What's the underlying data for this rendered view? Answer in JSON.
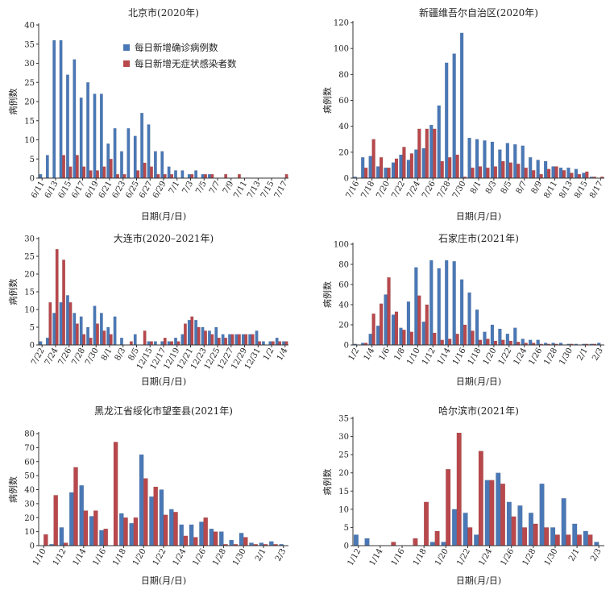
{
  "colors": {
    "confirmed": "#4a78b6",
    "asymptomatic": "#b8484c",
    "axis": "#333333"
  },
  "chart_data": [
    {
      "type": "bar",
      "title": "北京市(2020年)",
      "xlabel": "日期(月/日)",
      "ylabel": "病例数",
      "ylim": [
        0,
        40
      ],
      "yticks": [
        0,
        5,
        10,
        15,
        20,
        25,
        30,
        35,
        40
      ],
      "legend": [
        "每日新增确诊病例数",
        "每日新增无症状感染者数"
      ],
      "legend_position": "top-right",
      "categories": [
        "6/11",
        "6/12",
        "6/13",
        "6/14",
        "6/15",
        "6/16",
        "6/17",
        "6/18",
        "6/19",
        "6/20",
        "6/21",
        "6/22",
        "6/23",
        "6/24",
        "6/25",
        "6/26",
        "6/27",
        "6/28",
        "6/29",
        "6/30",
        "7/1",
        "7/2",
        "7/3",
        "7/4",
        "7/5",
        "7/6",
        "7/7",
        "7/8",
        "7/9",
        "7/10",
        "7/11",
        "7/12",
        "7/13",
        "7/14",
        "7/15",
        "7/16",
        "7/17"
      ],
      "ticklabels": [
        "6/11",
        "6/13",
        "6/15",
        "6/17",
        "6/19",
        "6/21",
        "6/23",
        "6/25",
        "6/27",
        "6/29",
        "7/1",
        "7/3",
        "7/5",
        "7/7",
        "7/9",
        "7/11",
        "7/13",
        "7/15",
        "7/17"
      ],
      "series": [
        {
          "name": "每日新增确诊病例数",
          "values": [
            1,
            6,
            36,
            36,
            27,
            31,
            21,
            25,
            22,
            22,
            9,
            13,
            7,
            13,
            11,
            17,
            14,
            7,
            7,
            3,
            2,
            2,
            1,
            2,
            1,
            1,
            0,
            0,
            0,
            0,
            0,
            0,
            0,
            0,
            0,
            0,
            0
          ]
        },
        {
          "name": "每日新增无症状感染者数",
          "values": [
            0,
            0,
            0,
            6,
            3,
            6,
            3,
            2,
            2,
            3,
            5,
            1,
            1,
            0,
            2,
            4,
            3,
            1,
            1,
            1,
            0,
            0,
            1,
            0,
            1,
            1,
            0,
            1,
            0,
            1,
            0,
            0,
            0,
            0,
            0,
            0,
            1
          ]
        }
      ]
    },
    {
      "type": "bar",
      "title": "新疆维吾尔自治区(2020年)",
      "xlabel": "日期(月/日)",
      "ylabel": "病例数",
      "ylim": [
        0,
        120
      ],
      "yticks": [
        0,
        20,
        40,
        60,
        80,
        100,
        120
      ],
      "categories": [
        "7/16",
        "7/17",
        "7/18",
        "7/19",
        "7/20",
        "7/21",
        "7/22",
        "7/23",
        "7/24",
        "7/25",
        "7/26",
        "7/27",
        "7/28",
        "7/29",
        "7/30",
        "7/31",
        "8/1",
        "8/2",
        "8/3",
        "8/4",
        "8/5",
        "8/6",
        "8/7",
        "8/8",
        "8/9",
        "8/10",
        "8/11",
        "8/12",
        "8/13",
        "8/14",
        "8/15",
        "8/16",
        "8/17"
      ],
      "ticklabels": [
        "7/16",
        "7/18",
        "7/20",
        "7/22",
        "7/24",
        "7/26",
        "7/28",
        "7/30",
        "8/1",
        "8/3",
        "8/5",
        "8/7",
        "8/9",
        "8/11",
        "8/13",
        "8/15",
        "8/17"
      ],
      "series": [
        {
          "name": "每日新增确诊病例数",
          "values": [
            1,
            16,
            17,
            9,
            8,
            12,
            18,
            14,
            22,
            23,
            41,
            56,
            89,
            96,
            112,
            31,
            30,
            29,
            28,
            22,
            27,
            26,
            25,
            16,
            14,
            13,
            9,
            8,
            8,
            7,
            4,
            1,
            0
          ]
        },
        {
          "name": "每日新增无症状感染者数",
          "values": [
            0,
            8,
            30,
            16,
            8,
            15,
            24,
            19,
            38,
            38,
            38,
            13,
            16,
            18,
            1,
            8,
            9,
            8,
            9,
            13,
            12,
            11,
            8,
            6,
            3,
            7,
            9,
            6,
            4,
            3,
            5,
            1,
            1
          ]
        }
      ]
    },
    {
      "type": "bar",
      "title": "大连市(2020–2021年)",
      "xlabel": "日期(月/日)",
      "ylabel": "病例数",
      "ylim": [
        0,
        30
      ],
      "yticks": [
        0,
        5,
        10,
        15,
        20,
        25,
        30
      ],
      "categories": [
        "7/22",
        "7/23",
        "7/24",
        "7/25",
        "7/26",
        "7/27",
        "7/28",
        "7/29",
        "7/30",
        "7/31",
        "8/1",
        "8/2",
        "8/3",
        "8/4",
        "8/5",
        "8/6",
        "12/15",
        "12/16",
        "12/17",
        "12/18",
        "12/19",
        "12/20",
        "12/21",
        "12/22",
        "12/23",
        "12/24",
        "12/25",
        "12/26",
        "12/27",
        "12/28",
        "12/29",
        "12/30",
        "12/31",
        "1/1",
        "1/2",
        "1/3",
        "1/4"
      ],
      "ticklabels": [
        "7/22",
        "7/24",
        "7/26",
        "7/28",
        "7/30",
        "8/1",
        "8/3",
        "8/5",
        "12/15",
        "12/17",
        "12/19",
        "12/21",
        "12/23",
        "12/25",
        "12/27",
        "12/29",
        "12/31",
        "1/2",
        "1/4"
      ],
      "series": [
        {
          "name": "每日新增确诊病例数",
          "values": [
            1,
            2,
            9,
            12,
            14,
            9,
            8,
            5,
            11,
            9,
            5,
            8,
            2,
            0,
            3,
            0,
            1,
            1,
            1,
            1,
            2,
            3,
            7,
            7,
            5,
            4,
            5,
            3,
            3,
            3,
            3,
            3,
            4,
            1,
            1,
            2,
            1
          ]
        },
        {
          "name": "每日新增无症状感染者数",
          "values": [
            0,
            12,
            27,
            24,
            12,
            6,
            3,
            2,
            6,
            4,
            3,
            0,
            0,
            1,
            0,
            4,
            1,
            0,
            2,
            1,
            1,
            6,
            8,
            5,
            4,
            3,
            2,
            2,
            3,
            3,
            3,
            3,
            1,
            0,
            1,
            1,
            1
          ]
        }
      ]
    },
    {
      "type": "bar",
      "title": "石家庄市(2021年)",
      "xlabel": "日期(月/日)",
      "ylabel": "病例数",
      "ylim": [
        0,
        100
      ],
      "yticks": [
        0,
        20,
        40,
        60,
        80,
        100
      ],
      "categories": [
        "1/2",
        "1/3",
        "1/4",
        "1/5",
        "1/6",
        "1/7",
        "1/8",
        "1/9",
        "1/10",
        "1/11",
        "1/12",
        "1/13",
        "1/14",
        "1/15",
        "1/16",
        "1/17",
        "1/18",
        "1/19",
        "1/20",
        "1/21",
        "1/22",
        "1/23",
        "1/24",
        "1/25",
        "1/26",
        "1/27",
        "1/28",
        "1/29",
        "1/30",
        "1/31",
        "2/1",
        "2/2",
        "2/3"
      ],
      "ticklabels": [
        "1/2",
        "1/4",
        "1/6",
        "1/8",
        "1/10",
        "1/12",
        "1/14",
        "1/16",
        "1/18",
        "1/20",
        "1/22",
        "1/24",
        "1/26",
        "1/28",
        "1/30",
        "2/1",
        "2/3"
      ],
      "series": [
        {
          "name": "每日新增确诊病例数",
          "values": [
            1,
            2,
            11,
            19,
            50,
            30,
            17,
            43,
            77,
            23,
            84,
            76,
            84,
            83,
            65,
            52,
            35,
            13,
            20,
            16,
            11,
            17,
            6,
            5,
            5,
            2,
            2,
            2,
            1,
            1,
            1,
            1,
            2
          ]
        },
        {
          "name": "每日新增无症状感染者数",
          "values": [
            0,
            2,
            31,
            41,
            67,
            33,
            15,
            13,
            49,
            40,
            12,
            5,
            6,
            11,
            20,
            14,
            5,
            6,
            4,
            5,
            4,
            3,
            2,
            2,
            1,
            1,
            1,
            0,
            1,
            0,
            1,
            1,
            0
          ]
        }
      ]
    },
    {
      "type": "bar",
      "title": "黑龙江省绥化市望奎县(2021年)",
      "xlabel": "日期(月/日)",
      "ylabel": "病例数",
      "ylim": [
        0,
        80
      ],
      "yticks": [
        0,
        10,
        20,
        30,
        40,
        50,
        60,
        70,
        80
      ],
      "categories": [
        "1/10",
        "1/11",
        "1/12",
        "1/13",
        "1/14",
        "1/15",
        "1/16",
        "1/17",
        "1/18",
        "1/19",
        "1/20",
        "1/21",
        "1/22",
        "1/23",
        "1/24",
        "1/25",
        "1/26",
        "1/27",
        "1/28",
        "1/29",
        "1/30",
        "1/31",
        "2/1",
        "2/2",
        "2/3"
      ],
      "ticklabels": [
        "1/10",
        "1/12",
        "1/14",
        "1/16",
        "1/18",
        "1/20",
        "1/22",
        "1/24",
        "1/26",
        "1/28",
        "1/30",
        "2/1",
        "2/3"
      ],
      "series": [
        {
          "name": "每日新增确诊病例数",
          "values": [
            0,
            1,
            13,
            38,
            43,
            21,
            11,
            0,
            23,
            16,
            65,
            35,
            40,
            26,
            15,
            15,
            17,
            12,
            10,
            4,
            9,
            2,
            2,
            3,
            1
          ]
        },
        {
          "name": "每日新增无症状感染者数",
          "values": [
            8,
            36,
            2,
            56,
            25,
            25,
            12,
            74,
            20,
            20,
            48,
            42,
            22,
            24,
            7,
            6,
            20,
            10,
            1,
            1,
            6,
            1,
            1,
            1,
            0
          ]
        }
      ]
    },
    {
      "type": "bar",
      "title": "哈尔滨市(2021年)",
      "xlabel": "日期(月/日)",
      "ylabel": "病例数",
      "ylim": [
        0,
        35
      ],
      "yticks": [
        0,
        5,
        10,
        15,
        20,
        25,
        30,
        35
      ],
      "categories": [
        "1/12",
        "1/13",
        "1/14",
        "1/15",
        "1/16",
        "1/17",
        "1/18",
        "1/19",
        "1/20",
        "1/21",
        "1/22",
        "1/23",
        "1/24",
        "1/25",
        "1/26",
        "1/27",
        "1/28",
        "1/29",
        "1/30",
        "1/31",
        "2/1",
        "2/2",
        "2/3"
      ],
      "ticklabels": [
        "1/12",
        "1/14",
        "1/16",
        "1/18",
        "1/20",
        "1/22",
        "1/24",
        "1/26",
        "1/28",
        "1/30",
        "2/1",
        "2/3"
      ],
      "series": [
        {
          "name": "每日新增确诊病例数",
          "values": [
            3,
            2,
            0,
            0,
            0,
            0,
            0,
            1,
            1,
            10,
            9,
            3,
            18,
            20,
            12,
            11,
            9,
            17,
            5,
            13,
            6,
            4,
            1
          ]
        },
        {
          "name": "每日新增无症状感染者数",
          "values": [
            0,
            0,
            0,
            1,
            0,
            2,
            12,
            4,
            21,
            31,
            5,
            26,
            18,
            17,
            8,
            5,
            6,
            5,
            3,
            3,
            3,
            3,
            0
          ]
        }
      ]
    }
  ]
}
